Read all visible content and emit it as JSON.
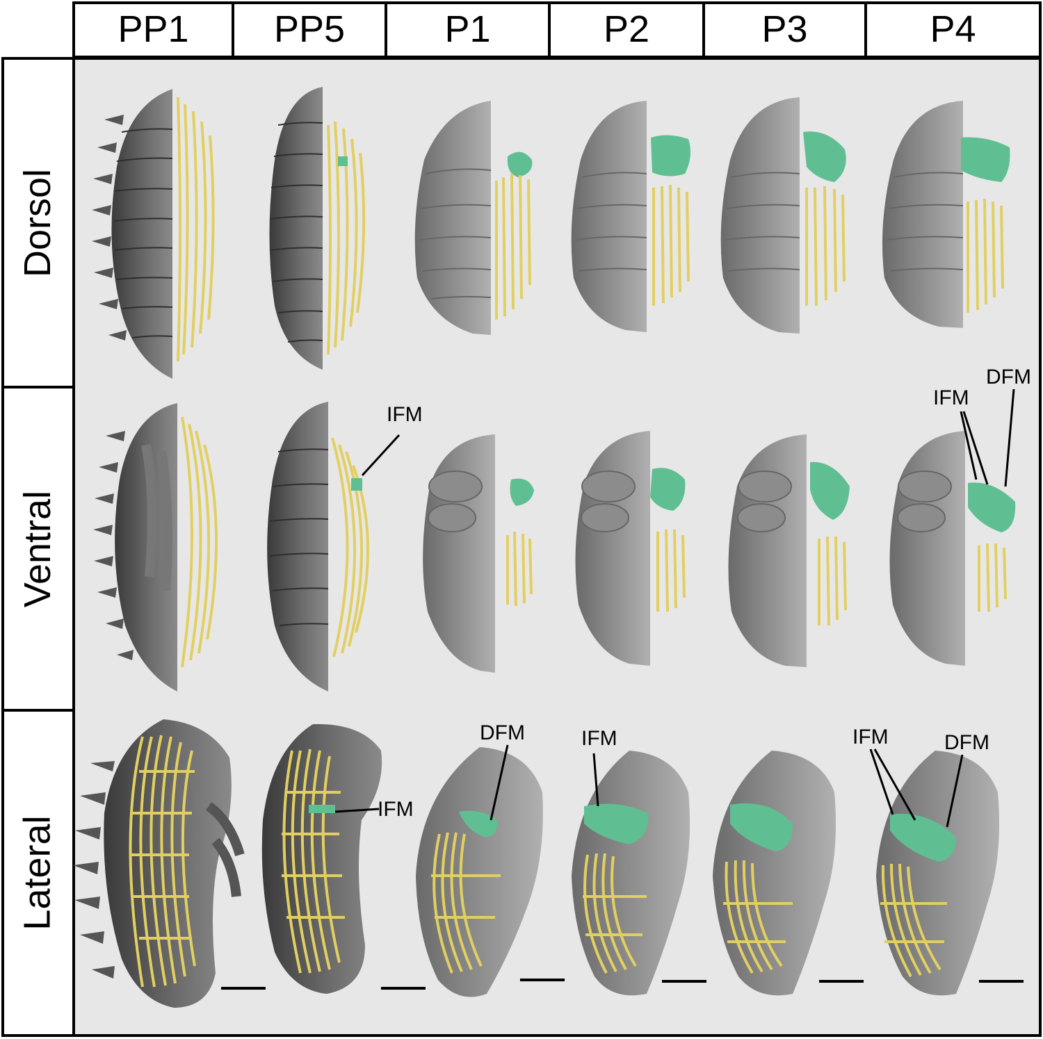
{
  "columns": [
    "PP1",
    "PP5",
    "P1",
    "P2",
    "P3",
    "P4"
  ],
  "rows": [
    "Dorsol",
    "Ventral",
    "Lateral"
  ],
  "annotations": {
    "ifm_ventral_pp5": "IFM",
    "ifm_ventral_p4": "IFM",
    "dfm_ventral_p4": "DFM",
    "ifm_lateral_pp5": "IFM",
    "dfm_lateral_p1": "DFM",
    "ifm_lateral_p2": "IFM",
    "ifm_lateral_p4": "IFM",
    "dfm_lateral_p4": "DFM"
  },
  "colors": {
    "panel_background": "#e7e7e7",
    "cuticle_gray": "#5a5a5a",
    "muscle_yellow": "#e2cf62",
    "muscle_green": "#5fbf93",
    "border": "#000000"
  },
  "scale_bars": 6
}
